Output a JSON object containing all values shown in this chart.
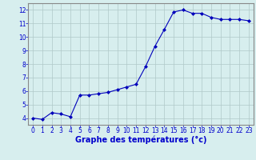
{
  "x": [
    0,
    1,
    2,
    3,
    4,
    5,
    6,
    7,
    8,
    9,
    10,
    11,
    12,
    13,
    14,
    15,
    16,
    17,
    18,
    19,
    20,
    21,
    22,
    23
  ],
  "y": [
    4.0,
    3.9,
    4.4,
    4.3,
    4.1,
    5.7,
    5.7,
    5.8,
    5.9,
    6.1,
    6.3,
    6.5,
    7.8,
    9.3,
    10.55,
    11.85,
    12.0,
    11.75,
    11.75,
    11.45,
    11.3,
    11.3,
    11.3,
    11.2
  ],
  "line_color": "#0000bb",
  "marker": "D",
  "marker_size": 2.0,
  "bg_color": "#d7eeee",
  "grid_color": "#b0c8c8",
  "xlabel": "Graphe des températures (°c)",
  "xlabel_color": "#0000cc",
  "xlabel_fontsize": 7,
  "xlabel_fontweight": "bold",
  "tick_color": "#0000cc",
  "tick_fontsize": 5.5,
  "ylim": [
    3.5,
    12.5
  ],
  "xlim": [
    -0.5,
    23.5
  ],
  "yticks": [
    4,
    5,
    6,
    7,
    8,
    9,
    10,
    11,
    12
  ],
  "xticks": [
    0,
    1,
    2,
    3,
    4,
    5,
    6,
    7,
    8,
    9,
    10,
    11,
    12,
    13,
    14,
    15,
    16,
    17,
    18,
    19,
    20,
    21,
    22,
    23
  ]
}
